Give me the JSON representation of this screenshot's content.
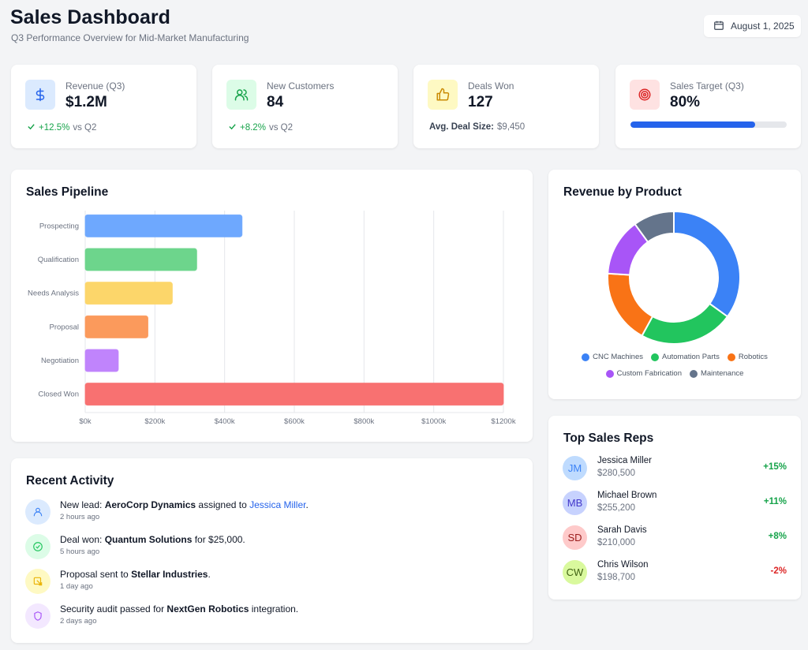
{
  "header": {
    "title": "Sales Dashboard",
    "subtitle": "Q3 Performance Overview for Mid-Market Manufacturing",
    "date": "August 1, 2025"
  },
  "kpis": [
    {
      "label": "Revenue (Q3)",
      "value": "$1.2M",
      "change": "+12.5%",
      "change_suffix": "vs Q2",
      "icon": "dollar-icon"
    },
    {
      "label": "New Customers",
      "value": "84",
      "change": "+8.2%",
      "change_suffix": "vs Q2",
      "icon": "users-icon"
    },
    {
      "label": "Deals Won",
      "value": "127",
      "foot_label": "Avg. Deal Size:",
      "foot_value": "$9,450",
      "icon": "thumbs-up-icon"
    },
    {
      "label": "Sales Target (Q3)",
      "value": "80%",
      "progress": 0.8,
      "icon": "target-icon"
    }
  ],
  "pipeline": {
    "title": "Sales Pipeline"
  },
  "chart_data": [
    {
      "type": "bar",
      "orientation": "horizontal",
      "title": "Sales Pipeline",
      "categories": [
        "Prospecting",
        "Qualification",
        "Needs Analysis",
        "Proposal",
        "Negotiation",
        "Closed Won"
      ],
      "values": [
        450,
        320,
        250,
        180,
        95,
        1200
      ],
      "colors": [
        "#6ea8fe",
        "#6dd58c",
        "#fcd66a",
        "#fb9a5c",
        "#c084fc",
        "#f87171"
      ],
      "xticks": [
        "$0k",
        "$200k",
        "$400k",
        "$600k",
        "$800k",
        "$1000k",
        "$1200k"
      ],
      "xlim": [
        0,
        1200
      ],
      "grid": true
    },
    {
      "type": "pie",
      "donut": true,
      "title": "Revenue by Product",
      "labels": [
        "CNC Machines",
        "Automation Parts",
        "Robotics",
        "Custom Fabrication",
        "Maintenance"
      ],
      "values": [
        35,
        23,
        18,
        14,
        10
      ],
      "colors": [
        "#3b82f6",
        "#22c55e",
        "#f97316",
        "#a855f7",
        "#64748b"
      ],
      "legend": "bottom"
    }
  ],
  "donut": {
    "title": "Revenue by Product"
  },
  "activity": {
    "title": "Recent Activity",
    "items": [
      {
        "pre": "New lead: ",
        "bold": "AeroCorp Dynamics",
        "mid": " assigned to ",
        "link": "Jessica Miller",
        "post": ".",
        "time": "2 hours ago",
        "icon": "user-icon",
        "bg": "#dbeafe",
        "fg": "#3b82f6"
      },
      {
        "pre": "Deal won: ",
        "bold": "Quantum Solutions",
        "mid": " for $25,000.",
        "link": "",
        "post": "",
        "time": "5 hours ago",
        "icon": "check-circle-icon",
        "bg": "#dcfce7",
        "fg": "#22c55e"
      },
      {
        "pre": "Proposal sent to ",
        "bold": "Stellar Industries",
        "mid": ".",
        "link": "",
        "post": "",
        "time": "1 day ago",
        "icon": "document-send-icon",
        "bg": "#fef9c3",
        "fg": "#eab308"
      },
      {
        "pre": "Security audit passed for ",
        "bold": "NextGen Robotics",
        "mid": " integration.",
        "link": "",
        "post": "",
        "time": "2 days ago",
        "icon": "shield-icon",
        "bg": "#f3e8ff",
        "fg": "#a855f7"
      }
    ]
  },
  "reps": {
    "title": "Top Sales Reps",
    "items": [
      {
        "initials": "JM",
        "name": "Jessica Miller",
        "amount": "$280,500",
        "change": "+15%",
        "bg": "#bfdbfe",
        "fg": "#3b82f6",
        "cc": "#16a34a"
      },
      {
        "initials": "MB",
        "name": "Michael Brown",
        "amount": "$255,200",
        "change": "+11%",
        "bg": "#c7d2fe",
        "fg": "#4338ca",
        "cc": "#16a34a"
      },
      {
        "initials": "SD",
        "name": "Sarah Davis",
        "amount": "$210,000",
        "change": "+8%",
        "bg": "#fecaca",
        "fg": "#991b1b",
        "cc": "#16a34a"
      },
      {
        "initials": "CW",
        "name": "Chris Wilson",
        "amount": "$198,700",
        "change": "-2%",
        "bg": "#d9f99d",
        "fg": "#3f6212",
        "cc": "#dc2626"
      }
    ]
  }
}
